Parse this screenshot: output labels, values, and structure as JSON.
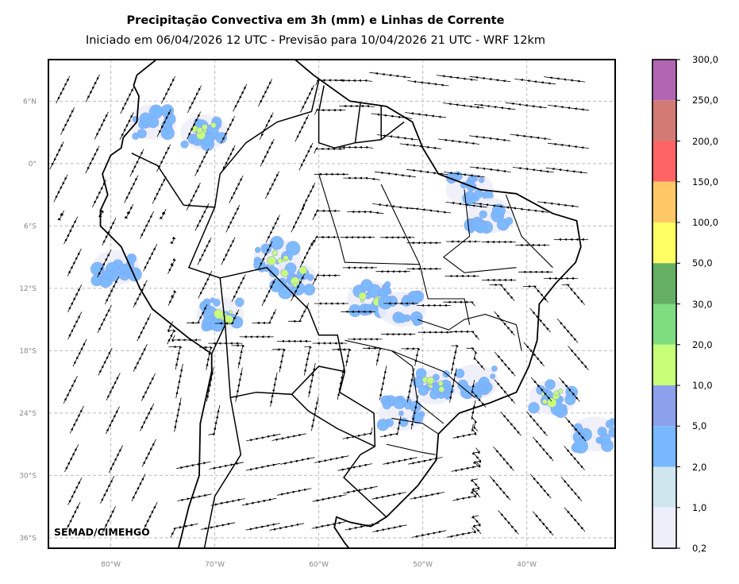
{
  "title": "Precipitação Convectiva em 3h (mm) e Linhas de Corrente",
  "subtitle": "Iniciado em 06/04/2026 12 UTC - Previsão para 10/04/2026 21 UTC - WRF 12km",
  "credit": "SEMAD/CIMEHGO",
  "map": {
    "lon_range": [
      -86,
      -31.5
    ],
    "lat_range": [
      -37,
      10
    ],
    "lat_ticks": [
      {
        "value": 6,
        "label": "6°N"
      },
      {
        "value": 0,
        "label": "0°"
      },
      {
        "value": -6,
        "label": "6°S"
      },
      {
        "value": -12,
        "label": "12°S"
      },
      {
        "value": -18,
        "label": "18°S"
      },
      {
        "value": -24,
        "label": "24°S"
      },
      {
        "value": -30,
        "label": "30°S"
      },
      {
        "value": -36,
        "label": "36°S"
      }
    ],
    "lon_ticks": [
      {
        "value": -80,
        "label": "80°W"
      },
      {
        "value": -70,
        "label": "70°W"
      },
      {
        "value": -60,
        "label": "60°W"
      },
      {
        "value": -50,
        "label": "50°W"
      },
      {
        "value": -40,
        "label": "40°W"
      }
    ],
    "grid": true
  },
  "colorbar": {
    "labels": [
      "300,0",
      "250,0",
      "200,0",
      "150,0",
      "100,0",
      "50,0",
      "30,0",
      "20,0",
      "10,0",
      "5,0",
      "2,0",
      "1,0",
      "0,2"
    ],
    "colors": [
      "#b266b2",
      "#d47a74",
      "#ff6464",
      "#ffc864",
      "#ffff64",
      "#64af64",
      "#7fdc7f",
      "#c8ff78",
      "#8ca0ec",
      "#78b8ff",
      "#cfe6ee",
      "#eeeefa"
    ]
  },
  "chart_data": {
    "type": "map",
    "title": "Precipitação Convectiva em 3h (mm) e Linhas de Corrente",
    "colorbar_levels_mm": [
      0.2,
      1,
      2,
      5,
      10,
      20,
      30,
      50,
      100,
      150,
      200,
      250,
      300
    ],
    "precip_areas": [
      {
        "lon": -71,
        "lat": 3,
        "max_level_mm": 10
      },
      {
        "lon": -76,
        "lat": 4,
        "max_level_mm": 5
      },
      {
        "lon": -64,
        "lat": -9,
        "max_level_mm": 10
      },
      {
        "lon": -62.5,
        "lat": -11,
        "max_level_mm": 20
      },
      {
        "lon": -69.5,
        "lat": -14.5,
        "max_level_mm": 10
      },
      {
        "lon": -55,
        "lat": -13,
        "max_level_mm": 10
      },
      {
        "lon": -52,
        "lat": -14,
        "max_level_mm": 5
      },
      {
        "lon": -45.5,
        "lat": -2.5,
        "max_level_mm": 5
      },
      {
        "lon": -43.5,
        "lat": -5,
        "max_level_mm": 5
      },
      {
        "lon": -49,
        "lat": -21.5,
        "max_level_mm": 10
      },
      {
        "lon": -45,
        "lat": -21,
        "max_level_mm": 5
      },
      {
        "lon": -37.5,
        "lat": -22.5,
        "max_level_mm": 10
      },
      {
        "lon": -33.5,
        "lat": -26,
        "max_level_mm": 5
      },
      {
        "lon": -52,
        "lat": -24,
        "max_level_mm": 5
      },
      {
        "lon": -79.5,
        "lat": -10,
        "max_level_mm": 5
      }
    ]
  }
}
